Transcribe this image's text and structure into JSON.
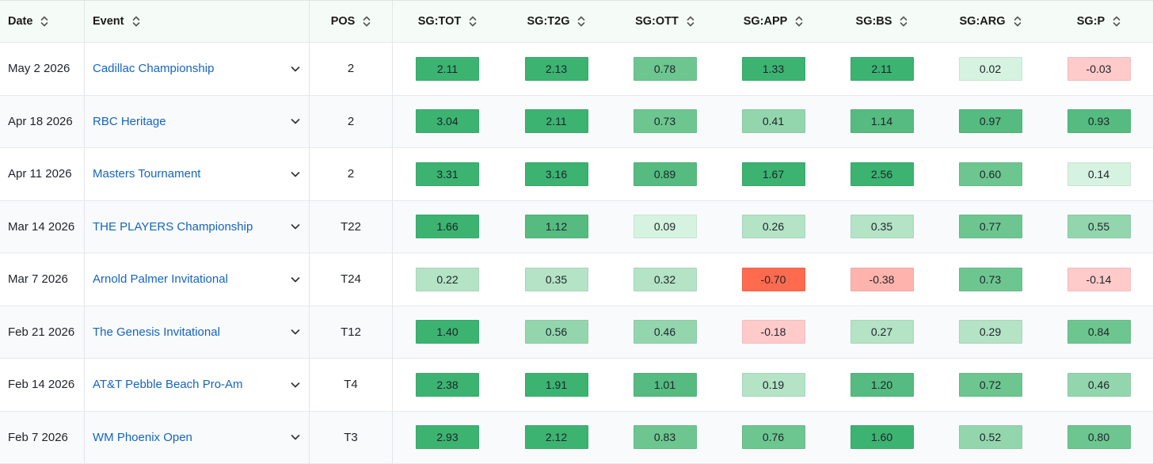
{
  "table": {
    "headers": {
      "date": "Date",
      "event": "Event",
      "pos": "POS",
      "sg": [
        "SG:TOT",
        "SG:T2G",
        "SG:OTT",
        "SG:APP",
        "SG:BS",
        "SG:ARG",
        "SG:P"
      ]
    },
    "rows": [
      {
        "date": "May 2 2026",
        "event": "Cadillac Championship",
        "pos": "2",
        "sg": [
          "2.11",
          "2.13",
          "0.78",
          "1.33",
          "2.11",
          "0.02",
          "-0.03"
        ]
      },
      {
        "date": "Apr 18 2026",
        "event": "RBC Heritage",
        "pos": "2",
        "sg": [
          "3.04",
          "2.11",
          "0.73",
          "0.41",
          "1.14",
          "0.97",
          "0.93"
        ]
      },
      {
        "date": "Apr 11 2026",
        "event": "Masters Tournament",
        "pos": "2",
        "sg": [
          "3.31",
          "3.16",
          "0.89",
          "1.67",
          "2.56",
          "0.60",
          "0.14"
        ]
      },
      {
        "date": "Mar 14 2026",
        "event": "THE PLAYERS Championship",
        "pos": "T22",
        "sg": [
          "1.66",
          "1.12",
          "0.09",
          "0.26",
          "0.35",
          "0.77",
          "0.55"
        ]
      },
      {
        "date": "Mar 7 2026",
        "event": "Arnold Palmer Invitational",
        "pos": "T24",
        "sg": [
          "0.22",
          "0.35",
          "0.32",
          "-0.70",
          "-0.38",
          "0.73",
          "-0.14"
        ]
      },
      {
        "date": "Feb 21 2026",
        "event": "The Genesis Invitational",
        "pos": "T12",
        "sg": [
          "1.40",
          "0.56",
          "0.46",
          "-0.18",
          "0.27",
          "0.29",
          "0.84"
        ]
      },
      {
        "date": "Feb 14 2026",
        "event": "AT&T Pebble Beach Pro-Am",
        "pos": "T4",
        "sg": [
          "2.38",
          "1.91",
          "1.01",
          "0.19",
          "1.20",
          "0.72",
          "0.46"
        ]
      },
      {
        "date": "Feb 7 2026",
        "event": "WM Phoenix Open",
        "pos": "T3",
        "sg": [
          "2.93",
          "2.12",
          "0.83",
          "0.76",
          "1.60",
          "0.52",
          "0.80"
        ]
      }
    ]
  },
  "colors": {
    "green_strong": "#3cb371",
    "green_med": "#55bb80",
    "green_light": "#6dc690",
    "green_pale": "#93d6ae",
    "green_paler": "#b4e3c6",
    "green_faint": "#d6f2e0",
    "red_faint": "#ffcaca",
    "red_light": "#ffb3ad",
    "red_strong": "#ff6b4f",
    "link": "#1565c0"
  },
  "icons": {
    "sort": "sort-updown-icon",
    "expand": "chevron-down-icon"
  }
}
